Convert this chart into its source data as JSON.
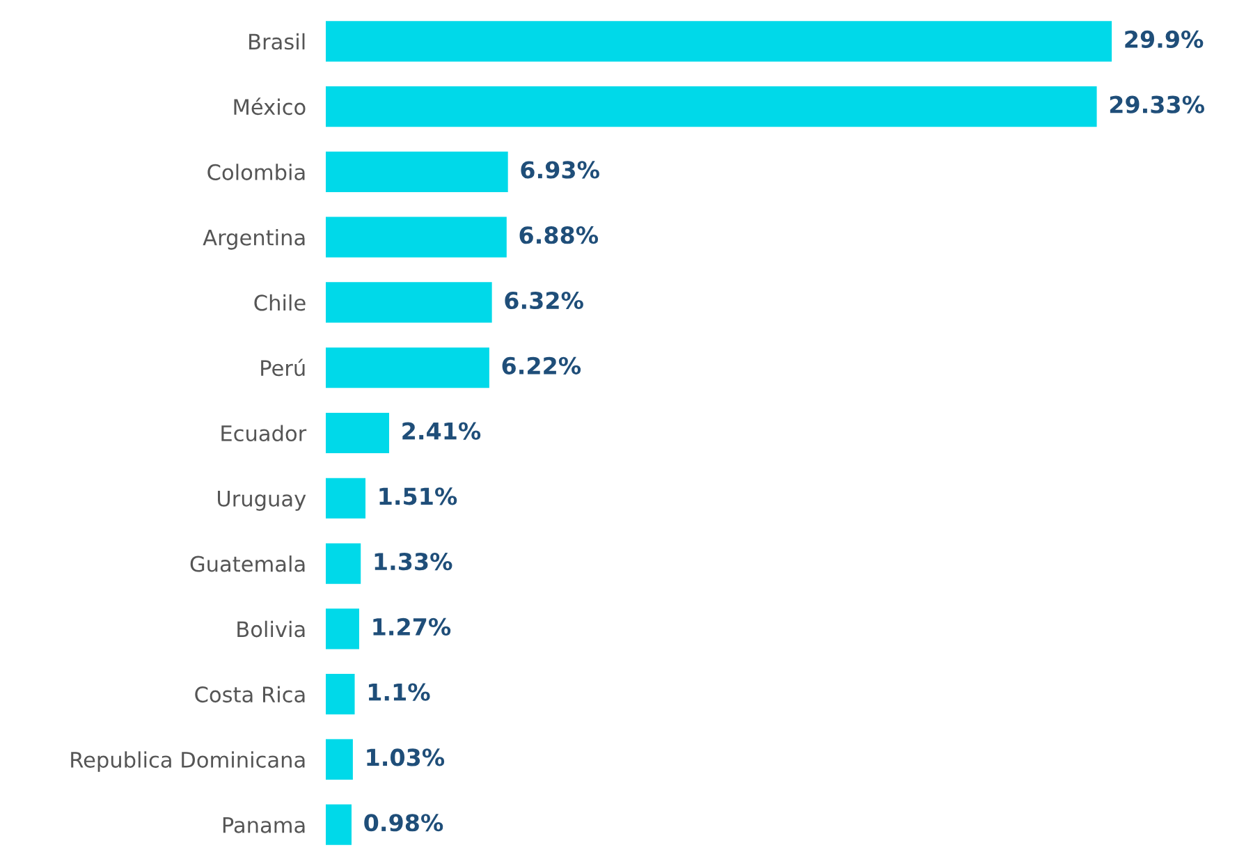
{
  "chart_data": {
    "type": "bar",
    "orientation": "horizontal",
    "categories": [
      "Brasil",
      "México",
      "Colombia",
      "Argentina",
      "Chile",
      "Perú",
      "Ecuador",
      "Uruguay",
      "Guatemala",
      "Bolivia",
      "Costa Rica",
      "Republica Dominicana",
      "Panama"
    ],
    "values": [
      29.9,
      29.33,
      6.93,
      6.88,
      6.32,
      6.22,
      2.41,
      1.51,
      1.33,
      1.27,
      1.1,
      1.03,
      0.98
    ],
    "value_labels": [
      "29.9%",
      "29.33%",
      "6.93%",
      "6.88%",
      "6.32%",
      "6.22%",
      "2.41%",
      "1.51%",
      "1.33%",
      "1.27%",
      "1.1%",
      "1.03%",
      "0.98%"
    ],
    "color": "#00d9e9",
    "grid": false,
    "legend": false
  }
}
